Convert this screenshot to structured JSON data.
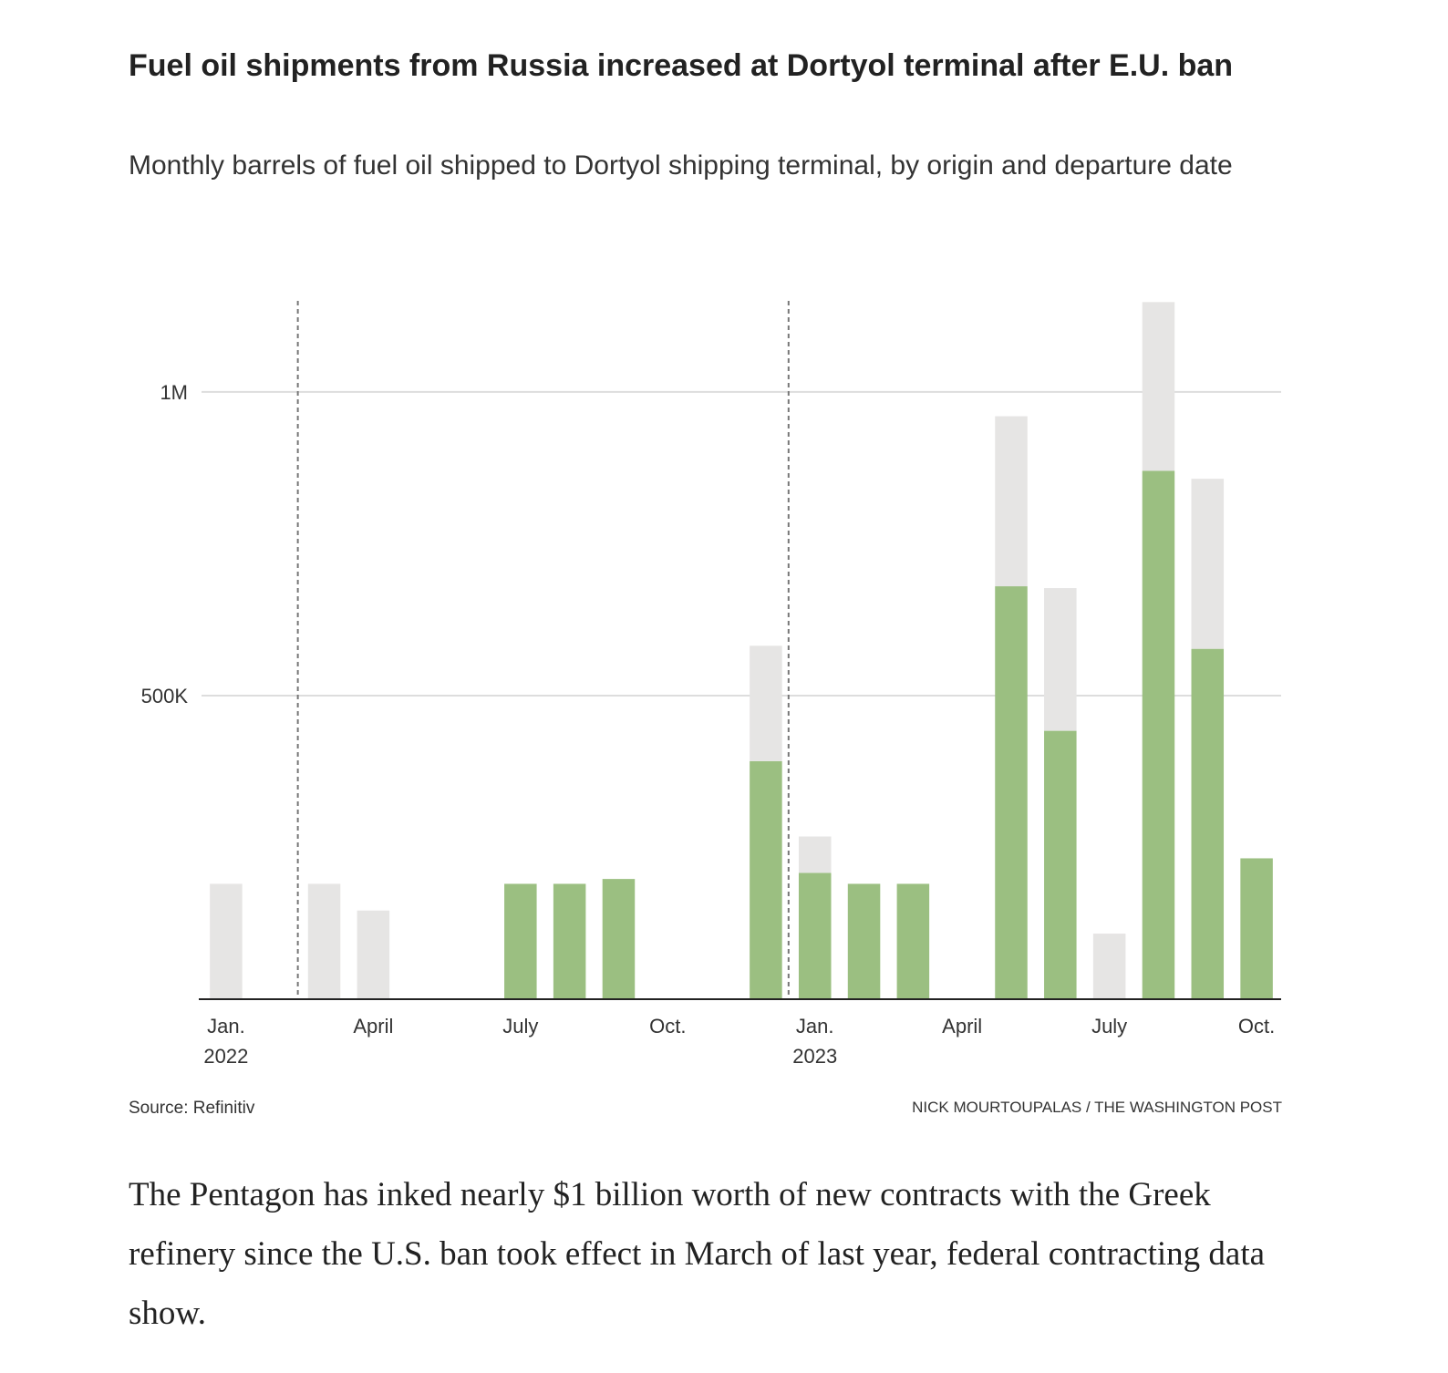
{
  "title": "Fuel oil shipments from Russia increased at Dortyol terminal after E.U. ban",
  "subtitle": "Monthly barrels of fuel oil shipped to Dortyol shipping terminal, by origin and departure date",
  "source": "Source: Refinitiv",
  "credit": "Nick Mourtoupalas / The Washington Post",
  "body_text": "The Pentagon has inked nearly $1 billion worth of new contracts with the Greek refinery since the U.S. ban took effect in March of last year, federal contracting data show.",
  "colors": {
    "russia": "#9bbf81",
    "other": "#e6e5e4",
    "grid": "#dddddd",
    "axis": "#222222",
    "ref_line": "#777777"
  },
  "chart_data": {
    "type": "bar",
    "stacked": true,
    "ylim": [
      0,
      1150000
    ],
    "yticks": [
      {
        "value": 500000,
        "label": "500K"
      },
      {
        "value": 1000000,
        "label": "1M"
      }
    ],
    "xticks": [
      {
        "month": "2022-01",
        "label": "Jan.",
        "sublabel": "2022"
      },
      {
        "month": "2022-04",
        "label": "April",
        "sublabel": ""
      },
      {
        "month": "2022-07",
        "label": "July",
        "sublabel": ""
      },
      {
        "month": "2022-10",
        "label": "Oct.",
        "sublabel": ""
      },
      {
        "month": "2023-01",
        "label": "Jan.",
        "sublabel": "2023"
      },
      {
        "month": "2023-04",
        "label": "April",
        "sublabel": ""
      },
      {
        "month": "2023-07",
        "label": "July",
        "sublabel": ""
      },
      {
        "month": "2023-10",
        "label": "Oct.",
        "sublabel": ""
      }
    ],
    "reference_lines": [
      "2022-03",
      "2023-01"
    ],
    "categories": [
      "2022-01",
      "2022-02",
      "2022-03",
      "2022-04",
      "2022-05",
      "2022-06",
      "2022-07",
      "2022-08",
      "2022-09",
      "2022-10",
      "2022-11",
      "2022-12",
      "2023-01",
      "2023-02",
      "2023-03",
      "2023-04",
      "2023-05",
      "2023-06",
      "2023-07",
      "2023-08",
      "2023-09",
      "2023-10"
    ],
    "series": [
      {
        "key": "russia",
        "values": [
          0,
          0,
          0,
          0,
          0,
          0,
          190000,
          190000,
          198000,
          0,
          0,
          392000,
          208000,
          190000,
          190000,
          0,
          680000,
          442000,
          0,
          870000,
          577000,
          232000
        ]
      },
      {
        "key": "other",
        "values": [
          190000,
          0,
          190000,
          146000,
          0,
          0,
          0,
          0,
          0,
          0,
          0,
          190000,
          60000,
          0,
          0,
          0,
          280000,
          235000,
          108000,
          278000,
          280000,
          0
        ]
      }
    ]
  }
}
